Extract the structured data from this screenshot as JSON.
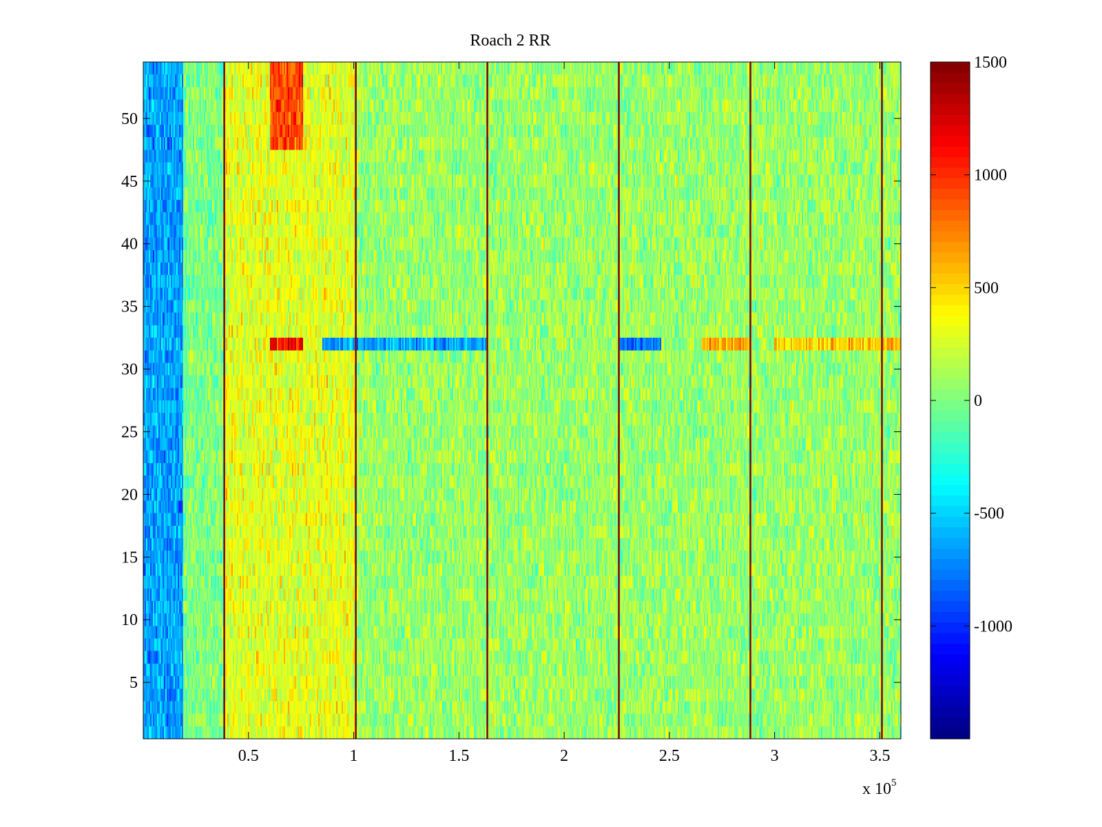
{
  "chart_data": {
    "type": "heatmap",
    "title": "Roach 2 RR",
    "xlabel": "",
    "ylabel": "",
    "x_multiplier_label": "x 10",
    "x_multiplier_exponent": "5",
    "xlim": [
      0,
      360000
    ],
    "ylim": [
      0.5,
      54.5
    ],
    "x_ticks": [
      {
        "value": 50000,
        "label": "0.5"
      },
      {
        "value": 100000,
        "label": "1"
      },
      {
        "value": 150000,
        "label": "1.5"
      },
      {
        "value": 200000,
        "label": "2"
      },
      {
        "value": 250000,
        "label": "2.5"
      },
      {
        "value": 300000,
        "label": "3"
      },
      {
        "value": 350000,
        "label": "3.5"
      }
    ],
    "y_ticks": [
      {
        "value": 5,
        "label": "5"
      },
      {
        "value": 10,
        "label": "10"
      },
      {
        "value": 15,
        "label": "15"
      },
      {
        "value": 20,
        "label": "20"
      },
      {
        "value": 25,
        "label": "25"
      },
      {
        "value": 30,
        "label": "30"
      },
      {
        "value": 35,
        "label": "35"
      },
      {
        "value": 40,
        "label": "40"
      },
      {
        "value": 45,
        "label": "45"
      },
      {
        "value": 50,
        "label": "50"
      }
    ],
    "rows": 54,
    "colorbar": {
      "colormap": "jet",
      "clim": [
        -1500,
        1500
      ],
      "ticks": [
        {
          "value": 1500,
          "label": "1500"
        },
        {
          "value": 1000,
          "label": "1000"
        },
        {
          "value": 500,
          "label": "500"
        },
        {
          "value": 0,
          "label": "0"
        },
        {
          "value": -500,
          "label": "-500"
        },
        {
          "value": -1000,
          "label": "-1000"
        }
      ]
    },
    "vertical_lines_x": [
      38500,
      101000,
      163500,
      226000,
      288500,
      351000
    ],
    "vertical_lines_value": 1500,
    "regions": [
      {
        "x_range": [
          0,
          19000
        ],
        "rows": [
          1,
          54
        ],
        "typical_value": -650,
        "note": "left edge blue"
      },
      {
        "x_range": [
          38500,
          101000
        ],
        "rows": [
          1,
          54
        ],
        "typical_value": 300
      },
      {
        "x_range": [
          60000,
          76000
        ],
        "rows": [
          48,
          54
        ],
        "typical_value": 900
      },
      {
        "x_range": [
          101000,
          360000
        ],
        "rows": [
          1,
          54
        ],
        "typical_value": 80
      },
      {
        "x_range": [
          60000,
          76000
        ],
        "rows": [
          32,
          32
        ],
        "typical_value": 1100
      },
      {
        "x_range": [
          85000,
          163500
        ],
        "rows": [
          32,
          32
        ],
        "typical_value": -650
      },
      {
        "x_range": [
          226000,
          246000
        ],
        "rows": [
          32,
          32
        ],
        "typical_value": -750
      },
      {
        "x_range": [
          265000,
          288500
        ],
        "rows": [
          32,
          32
        ],
        "typical_value": 650
      },
      {
        "x_range": [
          300000,
          360000
        ],
        "rows": [
          32,
          32
        ],
        "typical_value": 550
      }
    ]
  }
}
